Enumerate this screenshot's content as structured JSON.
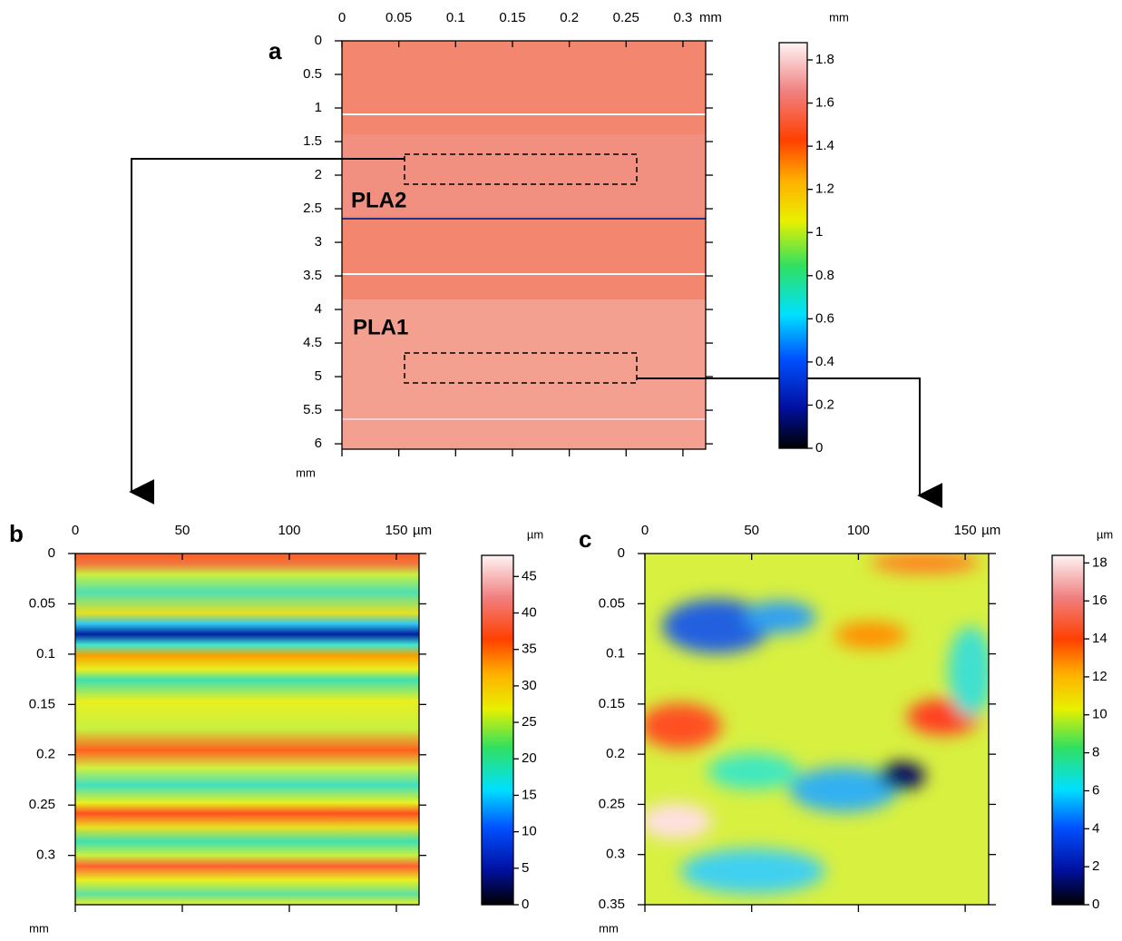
{
  "panels": [
    {
      "label": "a",
      "x_unit": "mm",
      "y_unit": "mm",
      "xlim": [
        0,
        0.32
      ],
      "xticks": [
        0,
        0.05,
        0.1,
        0.15,
        0.2,
        0.25,
        0.3
      ],
      "ylim": [
        0,
        6.08
      ],
      "yticks": [
        0,
        0.5,
        1,
        1.5,
        2,
        2.5,
        3,
        3.5,
        4,
        4.5,
        5,
        5.5,
        6
      ],
      "colorbar": {
        "unit": "mm",
        "lim": [
          0,
          1.88
        ],
        "ticks": [
          0,
          0.2,
          0.4,
          0.6,
          0.8,
          1,
          1.2,
          1.4,
          1.6,
          1.8
        ]
      },
      "annotations": [
        "PLA2",
        "PLA1"
      ]
    },
    {
      "label": "b",
      "x_unit": "µm",
      "y_unit": "mm",
      "xlim": [
        0,
        160.6
      ],
      "xticks": [
        0,
        50,
        100,
        150
      ],
      "ylim": [
        0,
        0.349
      ],
      "yticks": [
        0,
        0.05,
        0.1,
        0.15,
        0.2,
        0.25,
        0.3
      ],
      "colorbar": {
        "unit": "µm",
        "lim": [
          0,
          47.9
        ],
        "ticks": [
          0,
          5,
          10,
          15,
          20,
          25,
          30,
          35,
          40,
          45
        ]
      }
    },
    {
      "label": "c",
      "x_unit": "µm",
      "y_unit": "mm",
      "xlim": [
        0,
        161
      ],
      "xticks": [
        0,
        50,
        100,
        150
      ],
      "ylim": [
        0,
        0.35
      ],
      "yticks": [
        0,
        0.05,
        0.1,
        0.15,
        0.2,
        0.25,
        0.3,
        0.35
      ],
      "colorbar": {
        "unit": "µm",
        "lim": [
          0,
          18.4
        ],
        "ticks": [
          0,
          2,
          4,
          6,
          8,
          10,
          12,
          14,
          16,
          18
        ]
      }
    }
  ]
}
